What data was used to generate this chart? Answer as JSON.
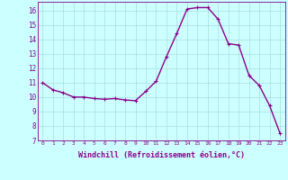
{
  "x": [
    0,
    1,
    2,
    3,
    4,
    5,
    6,
    7,
    8,
    9,
    10,
    11,
    12,
    13,
    14,
    15,
    16,
    17,
    18,
    19,
    20,
    21,
    22,
    23
  ],
  "y": [
    11.0,
    10.5,
    10.3,
    10.0,
    10.0,
    9.9,
    9.85,
    9.9,
    9.8,
    9.75,
    10.4,
    11.1,
    12.8,
    14.4,
    16.1,
    16.2,
    16.2,
    15.4,
    13.7,
    13.6,
    11.5,
    10.8,
    9.4,
    7.5
  ],
  "xlim": [
    -0.5,
    23.5
  ],
  "ylim": [
    7,
    16.6
  ],
  "yticks": [
    7,
    8,
    9,
    10,
    11,
    12,
    13,
    14,
    15,
    16
  ],
  "xticks": [
    0,
    1,
    2,
    3,
    4,
    5,
    6,
    7,
    8,
    9,
    10,
    11,
    12,
    13,
    14,
    15,
    16,
    17,
    18,
    19,
    20,
    21,
    22,
    23
  ],
  "line_color": "#8B008B",
  "marker": "+",
  "bg_color": "#CCFFFF",
  "grid_color": "#AADDDD",
  "xlabel": "Windchill (Refroidissement éolien,°C)",
  "xlabel_color": "#8B008B",
  "tick_color": "#8B008B",
  "marker_size": 3,
  "line_width": 1.0
}
